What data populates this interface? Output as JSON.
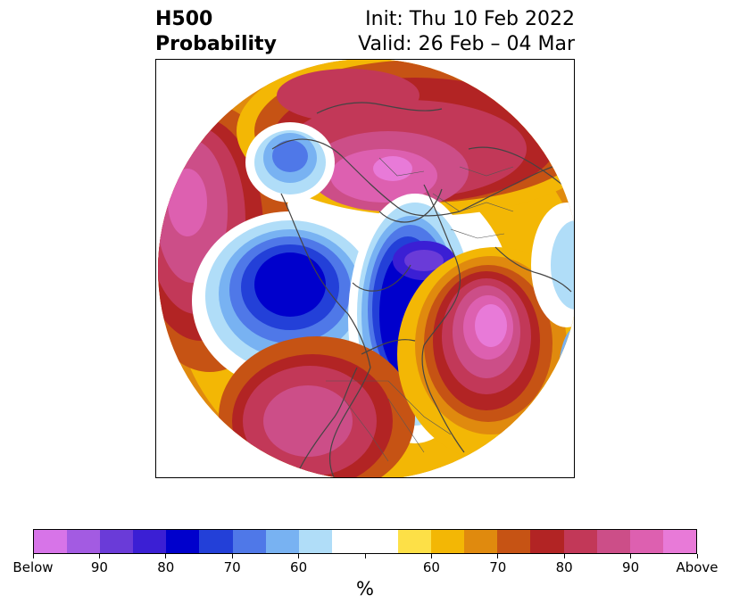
{
  "title": {
    "left_line1": "H500",
    "left_line2": "Probability",
    "right_line1": "Init: Thu 10 Feb 2022",
    "right_line2": "Valid: 26 Feb – 04 Mar"
  },
  "colorbar": {
    "colors": [
      "#d774e8",
      "#a35be2",
      "#6a3bd8",
      "#3b1fd4",
      "#0000cc",
      "#2340d8",
      "#4f78e8",
      "#78b2f2",
      "#b0ddf8",
      "#ffffff",
      "#ffffff",
      "#fde047",
      "#f3b705",
      "#e08a0e",
      "#c65314",
      "#b22424",
      "#c23858",
      "#cc4e88",
      "#dd60b0",
      "#e87ad8"
    ],
    "tick_labels": [
      "Below",
      "90",
      "80",
      "70",
      "60",
      "60",
      "70",
      "80",
      "90",
      "Above"
    ],
    "unit": "%"
  },
  "legend_colors": {
    "strong_above": "#e87ad8",
    "strong_below": "#0000cc",
    "neutral": "#ffffff"
  }
}
